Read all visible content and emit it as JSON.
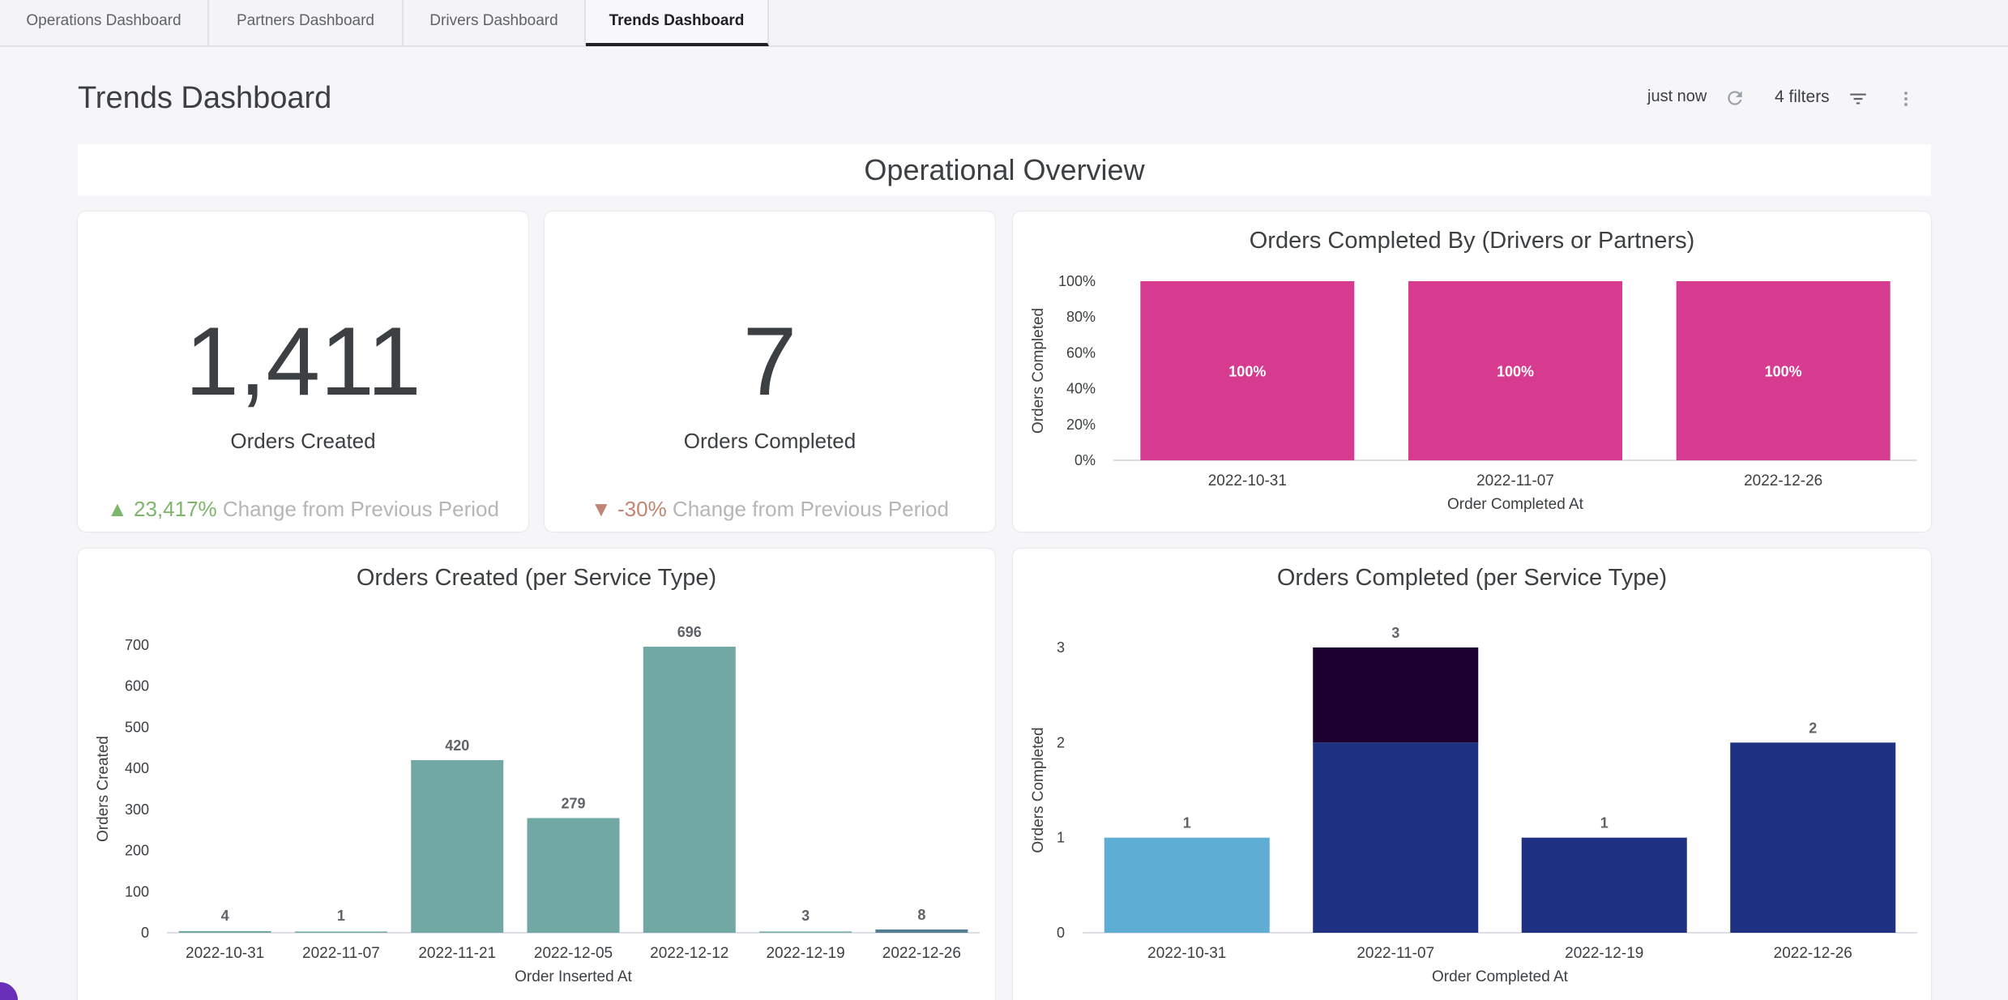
{
  "tabs": [
    {
      "label": "Operations Dashboard"
    },
    {
      "label": "Partners Dashboard"
    },
    {
      "label": "Drivers Dashboard"
    },
    {
      "label": "Trends Dashboard"
    }
  ],
  "header": {
    "title": "Trends Dashboard",
    "refresh_status": "just now",
    "filters_label": "4 filters"
  },
  "section": {
    "title": "Operational Overview"
  },
  "scorecards": [
    {
      "value": "1,411",
      "label": "Orders Created",
      "change_arrow": "▲",
      "change_value": "23,417%",
      "change_text": "Change from Previous Period",
      "change_color": "#7cb66a"
    },
    {
      "value": "7",
      "label": "Orders Completed",
      "change_arrow": "▼",
      "change_value": "-30%",
      "change_text": "Change from Previous Period",
      "change_color": "#c08573"
    }
  ],
  "icons": [
    "refresh-icon",
    "filter-icon",
    "more-vert-icon"
  ],
  "chart_data": [
    {
      "type": "bar",
      "title": "Orders Completed By (Drivers or Partners)",
      "xlabel": "Order Completed At",
      "ylabel": "Orders Completed",
      "stacked_percent": true,
      "categories": [
        "2022-10-31",
        "2022-11-07",
        "2022-12-26"
      ],
      "series": [
        {
          "values": [
            100,
            100,
            100
          ],
          "color": "#d63b8f"
        }
      ],
      "data_labels": [
        "100%",
        "100%",
        "100%"
      ],
      "yticks": [
        "0%",
        "20%",
        "40%",
        "60%",
        "80%",
        "100%"
      ],
      "ylim": [
        0,
        100
      ],
      "grid": false
    },
    {
      "type": "bar",
      "title": "Orders Created (per Service Type)",
      "xlabel": "Order Inserted At",
      "ylabel": "Orders Created",
      "categories": [
        "2022-10-31",
        "2022-11-07",
        "2022-11-21",
        "2022-12-05",
        "2022-12-12",
        "2022-12-19",
        "2022-12-26"
      ],
      "values": [
        4,
        1,
        420,
        279,
        696,
        3,
        8
      ],
      "bar_colors": [
        "#72a8a3",
        "#72a8a3",
        "#72a8a3",
        "#72a8a3",
        "#72a8a3",
        "#72a8a3",
        "#557f95"
      ],
      "yticks": [
        0,
        100,
        200,
        300,
        400,
        500,
        600,
        700
      ],
      "ylim": [
        0,
        700
      ],
      "grid": false
    },
    {
      "type": "bar",
      "title": "Orders Completed (per Service Type)",
      "xlabel": "Order Completed At",
      "ylabel": "Orders Completed",
      "stacked": true,
      "categories": [
        "2022-10-31",
        "2022-11-07",
        "2022-12-19",
        "2022-12-26"
      ],
      "series": [
        {
          "values": [
            1,
            0,
            0,
            0
          ],
          "color": "#5eadd4"
        },
        {
          "values": [
            0,
            2,
            1,
            2
          ],
          "color": "#1f3182"
        },
        {
          "values": [
            0,
            1,
            0,
            0
          ],
          "color": "#1c0030"
        }
      ],
      "totals": [
        1,
        3,
        1,
        2
      ],
      "yticks": [
        0,
        1,
        2,
        3
      ],
      "ylim": [
        0,
        3
      ],
      "grid": false
    }
  ]
}
